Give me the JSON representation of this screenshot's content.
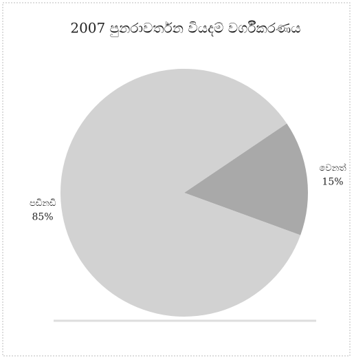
{
  "chart_data": {
    "type": "pie",
    "title": "2007 පුනරාවර්තන වියදම් වර්ගීකරණය",
    "categories": [
      "වෙනත්",
      "පඩිනඩි"
    ],
    "values": [
      15,
      85
    ],
    "value_labels": [
      "15%",
      "85%"
    ],
    "colors": [
      "#a9a9a9",
      "#d2d2d2"
    ]
  }
}
